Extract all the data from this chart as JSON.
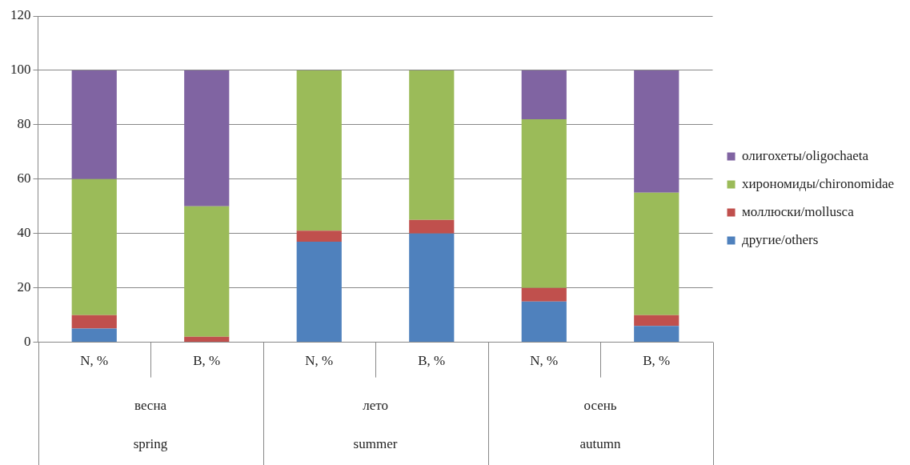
{
  "chart_data": {
    "type": "bar",
    "stacked": true,
    "categories": [
      "N, %",
      "B, %",
      "N, %",
      "B, %",
      "N, %",
      "B, %"
    ],
    "series": [
      {
        "name": "другие/others",
        "color": "#4f81bd",
        "values": [
          5,
          0,
          37,
          40,
          15,
          6
        ]
      },
      {
        "name": "моллюски/mollusca",
        "color": "#c0504d",
        "values": [
          5,
          2,
          4,
          5,
          5,
          4
        ]
      },
      {
        "name": "хирономиды/chironomidae",
        "color": "#9bbb59",
        "values": [
          50,
          48,
          59,
          55,
          62,
          45
        ]
      },
      {
        "name": "олигохеты/oligochaeta",
        "color": "#8064a2",
        "values": [
          40,
          50,
          0,
          0,
          18,
          45
        ]
      }
    ],
    "annotations": [
      "весна",
      "spring",
      "лето",
      "summer",
      "осень",
      "autumn"
    ],
    "ylim": [
      0,
      120
    ],
    "yticks": [
      0,
      20,
      40,
      60,
      80,
      100,
      120
    ],
    "grid": "y",
    "legend": "right"
  }
}
